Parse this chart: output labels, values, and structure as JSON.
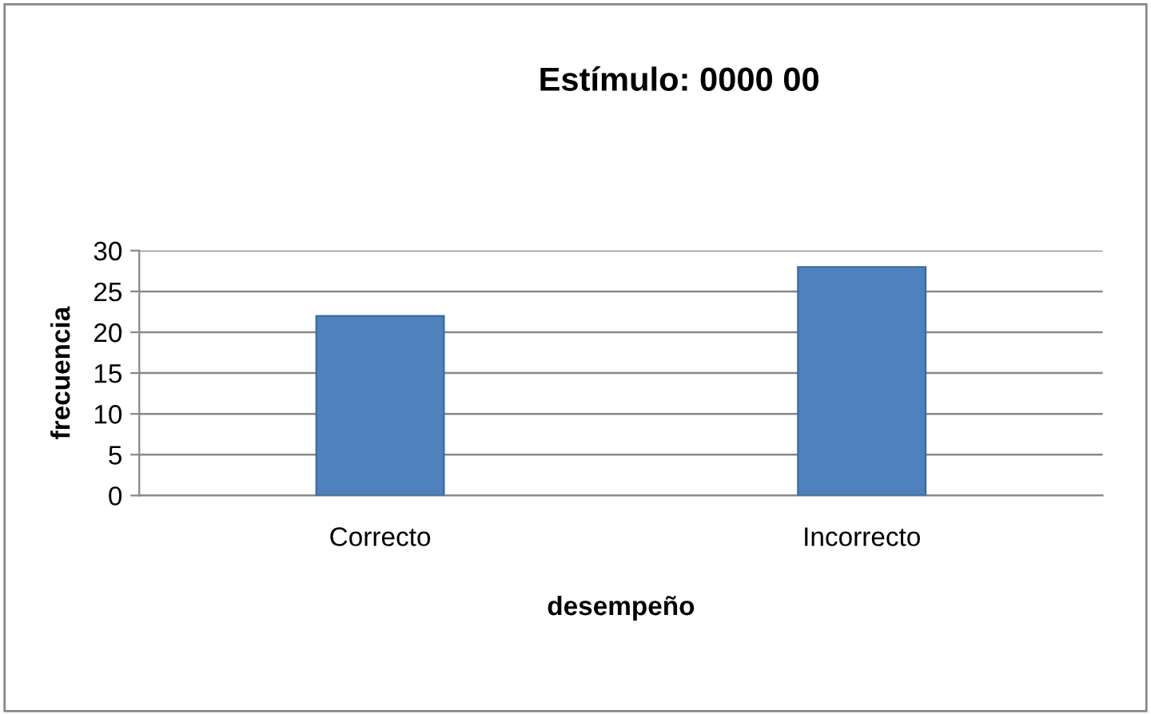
{
  "chart_data": {
    "type": "bar",
    "title": "Estímulo: 0000 00",
    "xlabel": "desempeño",
    "ylabel": "frecuencia",
    "categories": [
      "Correcto",
      "Incorrecto"
    ],
    "values": [
      22,
      28
    ],
    "color": "#4f81bd",
    "ylim": [
      0,
      30
    ],
    "yticks": [
      0,
      5,
      10,
      15,
      20,
      25,
      30
    ],
    "grid": "y"
  }
}
